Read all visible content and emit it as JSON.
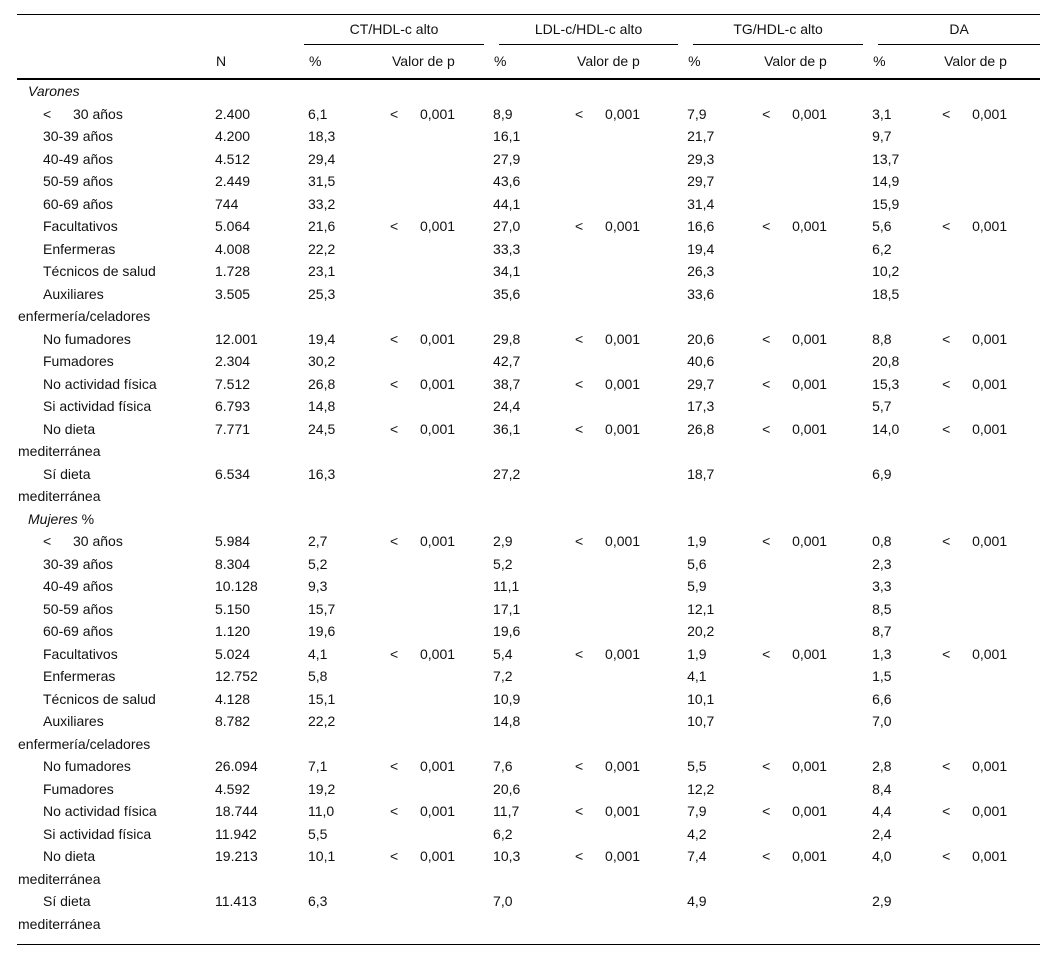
{
  "page": {
    "background": "#ffffff",
    "text_color": "#111111",
    "rule_color": "#000000"
  },
  "table": {
    "groups": [
      {
        "key": "ct",
        "label": "CT/HDL-c alto"
      },
      {
        "key": "ldl",
        "label": "LDL-c/HDL-c alto"
      },
      {
        "key": "tg",
        "label": "TG/HDL-c alto"
      },
      {
        "key": "da",
        "label": "DA"
      }
    ],
    "col_headers": {
      "n": "N",
      "pct": "%",
      "p": "Valor de p"
    },
    "sections": [
      {
        "title": "Varones",
        "suffix": "",
        "rows": [
          {
            "prefix": "<",
            "label": "30 años",
            "label2": "",
            "n": "2.400",
            "cells": [
              [
                "6,1",
                "<",
                "0,001"
              ],
              [
                "8,9",
                "<",
                "0,001"
              ],
              [
                "7,9",
                "<",
                "0,001"
              ],
              [
                "3,1",
                "<",
                "0,001"
              ]
            ]
          },
          {
            "prefix": "",
            "label": "30-39 años",
            "label2": "",
            "n": "4.200",
            "cells": [
              [
                "18,3",
                "",
                ""
              ],
              [
                "16,1",
                "",
                ""
              ],
              [
                "21,7",
                "",
                ""
              ],
              [
                "9,7",
                "",
                ""
              ]
            ]
          },
          {
            "prefix": "",
            "label": "40-49 años",
            "label2": "",
            "n": "4.512",
            "cells": [
              [
                "29,4",
                "",
                ""
              ],
              [
                "27,9",
                "",
                ""
              ],
              [
                "29,3",
                "",
                ""
              ],
              [
                "13,7",
                "",
                ""
              ]
            ]
          },
          {
            "prefix": "",
            "label": "50-59 años",
            "label2": "",
            "n": "2.449",
            "cells": [
              [
                "31,5",
                "",
                ""
              ],
              [
                "43,6",
                "",
                ""
              ],
              [
                "29,7",
                "",
                ""
              ],
              [
                "14,9",
                "",
                ""
              ]
            ]
          },
          {
            "prefix": "",
            "label": "60-69 años",
            "label2": "",
            "n": "744",
            "cells": [
              [
                "33,2",
                "",
                ""
              ],
              [
                "44,1",
                "",
                ""
              ],
              [
                "31,4",
                "",
                ""
              ],
              [
                "15,9",
                "",
                ""
              ]
            ]
          },
          {
            "prefix": "",
            "label": "Facultativos",
            "label2": "",
            "n": "5.064",
            "cells": [
              [
                "21,6",
                "<",
                "0,001"
              ],
              [
                "27,0",
                "<",
                "0,001"
              ],
              [
                "16,6",
                "<",
                "0,001"
              ],
              [
                "5,6",
                "<",
                "0,001"
              ]
            ]
          },
          {
            "prefix": "",
            "label": "Enfermeras",
            "label2": "",
            "n": "4.008",
            "cells": [
              [
                "22,2",
                "",
                ""
              ],
              [
                "33,3",
                "",
                ""
              ],
              [
                "19,4",
                "",
                ""
              ],
              [
                "6,2",
                "",
                ""
              ]
            ]
          },
          {
            "prefix": "",
            "label": "Técnicos de salud",
            "label2": "",
            "n": "1.728",
            "cells": [
              [
                "23,1",
                "",
                ""
              ],
              [
                "34,1",
                "",
                ""
              ],
              [
                "26,3",
                "",
                ""
              ],
              [
                "10,2",
                "",
                ""
              ]
            ]
          },
          {
            "prefix": "",
            "label": "Auxiliares",
            "label2": "enfermería/celadores",
            "n": "3.505",
            "cells": [
              [
                "25,3",
                "",
                ""
              ],
              [
                "35,6",
                "",
                ""
              ],
              [
                "33,6",
                "",
                ""
              ],
              [
                "18,5",
                "",
                ""
              ]
            ]
          },
          {
            "prefix": "",
            "label": "No fumadores",
            "label2": "",
            "n": "12.001",
            "cells": [
              [
                "19,4",
                "<",
                "0,001"
              ],
              [
                "29,8",
                "<",
                "0,001"
              ],
              [
                "20,6",
                "<",
                "0,001"
              ],
              [
                "8,8",
                "<",
                "0,001"
              ]
            ]
          },
          {
            "prefix": "",
            "label": "Fumadores",
            "label2": "",
            "n": "2.304",
            "cells": [
              [
                "30,2",
                "",
                ""
              ],
              [
                "42,7",
                "",
                ""
              ],
              [
                "40,6",
                "",
                ""
              ],
              [
                "20,8",
                "",
                ""
              ]
            ]
          },
          {
            "prefix": "",
            "label": "No actividad física",
            "label2": "",
            "n": "7.512",
            "cells": [
              [
                "26,8",
                "<",
                "0,001"
              ],
              [
                "38,7",
                "<",
                "0,001"
              ],
              [
                "29,7",
                "<",
                "0,001"
              ],
              [
                "15,3",
                "<",
                "0,001"
              ]
            ]
          },
          {
            "prefix": "",
            "label": "Si actividad física",
            "label2": "",
            "n": "6.793",
            "cells": [
              [
                "14,8",
                "",
                ""
              ],
              [
                "24,4",
                "",
                ""
              ],
              [
                "17,3",
                "",
                ""
              ],
              [
                "5,7",
                "",
                ""
              ]
            ]
          },
          {
            "prefix": "",
            "label": "No dieta",
            "label2": "mediterránea",
            "n": "7.771",
            "cells": [
              [
                "24,5",
                "<",
                "0,001"
              ],
              [
                "36,1",
                "<",
                "0,001"
              ],
              [
                "26,8",
                "<",
                "0,001"
              ],
              [
                "14,0",
                "<",
                "0,001"
              ]
            ]
          },
          {
            "prefix": "",
            "label": "Sí dieta",
            "label2": "mediterránea",
            "n": "6.534",
            "cells": [
              [
                "16,3",
                "",
                ""
              ],
              [
                "27,2",
                "",
                ""
              ],
              [
                "18,7",
                "",
                ""
              ],
              [
                "6,9",
                "",
                ""
              ]
            ]
          }
        ]
      },
      {
        "title": "Mujeres",
        "suffix": "%",
        "rows": [
          {
            "prefix": "<",
            "label": "30 años",
            "label2": "",
            "n": "5.984",
            "cells": [
              [
                "2,7",
                "<",
                "0,001"
              ],
              [
                "2,9",
                "<",
                "0,001"
              ],
              [
                "1,9",
                "<",
                "0,001"
              ],
              [
                "0,8",
                "<",
                "0,001"
              ]
            ]
          },
          {
            "prefix": "",
            "label": "30-39 años",
            "label2": "",
            "n": "8.304",
            "cells": [
              [
                "5,2",
                "",
                ""
              ],
              [
                "5,2",
                "",
                ""
              ],
              [
                "5,6",
                "",
                ""
              ],
              [
                "2,3",
                "",
                ""
              ]
            ]
          },
          {
            "prefix": "",
            "label": "40-49 años",
            "label2": "",
            "n": "10.128",
            "cells": [
              [
                "9,3",
                "",
                ""
              ],
              [
                "11,1",
                "",
                ""
              ],
              [
                "5,9",
                "",
                ""
              ],
              [
                "3,3",
                "",
                ""
              ]
            ]
          },
          {
            "prefix": "",
            "label": "50-59 años",
            "label2": "",
            "n": "5.150",
            "cells": [
              [
                "15,7",
                "",
                ""
              ],
              [
                "17,1",
                "",
                ""
              ],
              [
                "12,1",
                "",
                ""
              ],
              [
                "8,5",
                "",
                ""
              ]
            ]
          },
          {
            "prefix": "",
            "label": "60-69 años",
            "label2": "",
            "n": "1.120",
            "cells": [
              [
                "19,6",
                "",
                ""
              ],
              [
                "19,6",
                "",
                ""
              ],
              [
                "20,2",
                "",
                ""
              ],
              [
                "8,7",
                "",
                ""
              ]
            ]
          },
          {
            "prefix": "",
            "label": "Facultativos",
            "label2": "",
            "n": "5.024",
            "cells": [
              [
                "4,1",
                "<",
                "0,001"
              ],
              [
                "5,4",
                "<",
                "0,001"
              ],
              [
                "1,9",
                "<",
                "0,001"
              ],
              [
                "1,3",
                "<",
                "0,001"
              ]
            ]
          },
          {
            "prefix": "",
            "label": "Enfermeras",
            "label2": "",
            "n": "12.752",
            "cells": [
              [
                "5,8",
                "",
                ""
              ],
              [
                "7,2",
                "",
                ""
              ],
              [
                "4,1",
                "",
                ""
              ],
              [
                "1,5",
                "",
                ""
              ]
            ]
          },
          {
            "prefix": "",
            "label": "Técnicos de salud",
            "label2": "",
            "n": "4.128",
            "cells": [
              [
                "15,1",
                "",
                ""
              ],
              [
                "10,9",
                "",
                ""
              ],
              [
                "10,1",
                "",
                ""
              ],
              [
                "6,6",
                "",
                ""
              ]
            ]
          },
          {
            "prefix": "",
            "label": "Auxiliares",
            "label2": "enfermería/celadores",
            "n": "8.782",
            "cells": [
              [
                "22,2",
                "",
                ""
              ],
              [
                "14,8",
                "",
                ""
              ],
              [
                "10,7",
                "",
                ""
              ],
              [
                "7,0",
                "",
                ""
              ]
            ]
          },
          {
            "prefix": "",
            "label": "No fumadores",
            "label2": "",
            "n": "26.094",
            "cells": [
              [
                "7,1",
                "<",
                "0,001"
              ],
              [
                "7,6",
                "<",
                "0,001"
              ],
              [
                "5,5",
                "<",
                "0,001"
              ],
              [
                "2,8",
                "<",
                "0,001"
              ]
            ]
          },
          {
            "prefix": "",
            "label": "Fumadores",
            "label2": "",
            "n": "4.592",
            "cells": [
              [
                "19,2",
                "",
                ""
              ],
              [
                "20,6",
                "",
                ""
              ],
              [
                "12,2",
                "",
                ""
              ],
              [
                "8,4",
                "",
                ""
              ]
            ]
          },
          {
            "prefix": "",
            "label": "No actividad física",
            "label2": "",
            "n": "18.744",
            "cells": [
              [
                "11,0",
                "<",
                "0,001"
              ],
              [
                "11,7",
                "<",
                "0,001"
              ],
              [
                "7,9",
                "<",
                "0,001"
              ],
              [
                "4,4",
                "<",
                "0,001"
              ]
            ]
          },
          {
            "prefix": "",
            "label": "Si actividad física",
            "label2": "",
            "n": "11.942",
            "cells": [
              [
                "5,5",
                "",
                ""
              ],
              [
                "6,2",
                "",
                ""
              ],
              [
                "4,2",
                "",
                ""
              ],
              [
                "2,4",
                "",
                ""
              ]
            ]
          },
          {
            "prefix": "",
            "label": "No dieta",
            "label2": "mediterránea",
            "n": "19.213",
            "cells": [
              [
                "10,1",
                "<",
                "0,001"
              ],
              [
                "10,3",
                "<",
                "0,001"
              ],
              [
                "7,4",
                "<",
                "0,001"
              ],
              [
                "4,0",
                "<",
                "0,001"
              ]
            ]
          },
          {
            "prefix": "",
            "label": "Sí dieta",
            "label2": "mediterránea",
            "n": "11.413",
            "cells": [
              [
                "6,3",
                "",
                ""
              ],
              [
                "7,0",
                "",
                ""
              ],
              [
                "4,9",
                "",
                ""
              ],
              [
                "2,9",
                "",
                ""
              ]
            ]
          }
        ]
      }
    ]
  }
}
